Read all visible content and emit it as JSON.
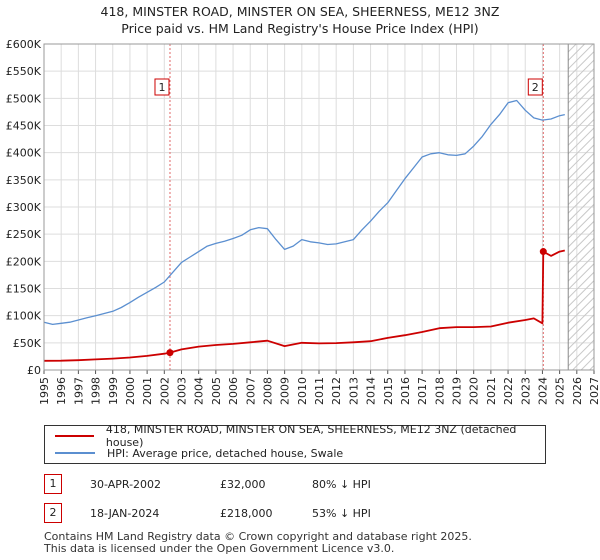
{
  "header": {
    "title": "418, MINSTER ROAD, MINSTER ON SEA, SHEERNESS, ME12 3NZ",
    "subtitle": "Price paid vs. HM Land Registry's House Price Index (HPI)"
  },
  "chart_data": {
    "type": "line",
    "title": "418, MINSTER ROAD, MINSTER ON SEA, SHEERNESS, ME12 3NZ",
    "subtitle": "Price paid vs. HM Land Registry's House Price Index (HPI)",
    "xlim": [
      1995,
      2027
    ],
    "ylim": [
      0,
      600000
    ],
    "x_ticks": [
      1995,
      1996,
      1997,
      1998,
      1999,
      2000,
      2001,
      2002,
      2003,
      2004,
      2005,
      2006,
      2007,
      2008,
      2009,
      2010,
      2011,
      2012,
      2013,
      2014,
      2015,
      2016,
      2017,
      2018,
      2019,
      2020,
      2021,
      2022,
      2023,
      2024,
      2025,
      2026,
      2027
    ],
    "y_ticks": [
      0,
      50000,
      100000,
      150000,
      200000,
      250000,
      300000,
      350000,
      400000,
      450000,
      500000,
      550000,
      600000
    ],
    "y_tick_labels": [
      "£0",
      "£50K",
      "£100K",
      "£150K",
      "£200K",
      "£250K",
      "£300K",
      "£350K",
      "£400K",
      "£450K",
      "£500K",
      "£550K",
      "£600K"
    ],
    "grid": true,
    "hatched_region": [
      2025.5,
      2027
    ],
    "series": [
      {
        "name": "HPI: Average price, detached house, Swale",
        "color": "#5b8fd0",
        "x": [
          1995.0,
          1995.5,
          1996.0,
          1996.5,
          1997.0,
          1997.5,
          1998.0,
          1998.5,
          1999.0,
          1999.5,
          2000.0,
          2000.5,
          2001.0,
          2001.5,
          2002.0,
          2002.5,
          2003.0,
          2003.5,
          2004.0,
          2004.5,
          2005.0,
          2005.5,
          2006.0,
          2006.5,
          2007.0,
          2007.5,
          2008.0,
          2008.5,
          2009.0,
          2009.5,
          2010.0,
          2010.5,
          2011.0,
          2011.5,
          2012.0,
          2012.5,
          2013.0,
          2013.5,
          2014.0,
          2014.5,
          2015.0,
          2015.5,
          2016.0,
          2016.5,
          2017.0,
          2017.5,
          2018.0,
          2018.5,
          2019.0,
          2019.5,
          2020.0,
          2020.5,
          2021.0,
          2021.5,
          2022.0,
          2022.5,
          2023.0,
          2023.5,
          2024.0,
          2024.5,
          2025.0,
          2025.3
        ],
        "y": [
          88000,
          84000,
          86000,
          88000,
          92000,
          96000,
          100000,
          104000,
          108000,
          115000,
          124000,
          134000,
          143000,
          152000,
          162000,
          180000,
          198000,
          208000,
          218000,
          228000,
          233000,
          237000,
          242000,
          248000,
          258000,
          262000,
          260000,
          240000,
          222000,
          228000,
          240000,
          236000,
          234000,
          231000,
          232000,
          236000,
          240000,
          258000,
          274000,
          292000,
          308000,
          330000,
          352000,
          372000,
          392000,
          398000,
          400000,
          396000,
          395000,
          398000,
          412000,
          430000,
          452000,
          470000,
          492000,
          496000,
          478000,
          464000,
          460000,
          462000,
          468000,
          470000
        ]
      },
      {
        "name": "418, MINSTER ROAD, MINSTER ON SEA, SHEERNESS, ME12 3NZ (detached house)",
        "color": "#cc0000",
        "x": [
          1995.0,
          1996.0,
          1997.0,
          1998.0,
          1999.0,
          2000.0,
          2001.0,
          2002.0,
          2002.33,
          2003.0,
          2004.0,
          2005.0,
          2006.0,
          2007.0,
          2008.0,
          2009.0,
          2010.0,
          2011.0,
          2012.0,
          2013.0,
          2014.0,
          2015.0,
          2016.0,
          2017.0,
          2018.0,
          2019.0,
          2020.0,
          2021.0,
          2022.0,
          2023.0,
          2023.5,
          2024.0,
          2024.05,
          2024.5,
          2025.0,
          2025.3
        ],
        "y": [
          17000,
          17200,
          18000,
          19500,
          21000,
          23000,
          26000,
          30000,
          32000,
          38000,
          43000,
          46000,
          48000,
          51000,
          54000,
          44000,
          50000,
          49000,
          49500,
          51000,
          53000,
          59000,
          64000,
          70000,
          77000,
          79000,
          79000,
          80000,
          87000,
          92000,
          95000,
          86000,
          218000,
          210000,
          218000,
          220000
        ]
      }
    ],
    "transactions": [
      {
        "id": "1",
        "date": "30-APR-2002",
        "x": 2002.33,
        "price": 32000,
        "price_label": "£32,000",
        "hpi_note": "80% ↓ HPI"
      },
      {
        "id": "2",
        "date": "18-JAN-2024",
        "x": 2024.05,
        "price": 218000,
        "price_label": "£218,000",
        "hpi_note": "53% ↓ HPI"
      }
    ]
  },
  "legend": {
    "property_label": "418, MINSTER ROAD, MINSTER ON SEA, SHEERNESS, ME12 3NZ (detached house)",
    "hpi_label": "HPI: Average price, detached house, Swale",
    "property_color": "#cc0000",
    "hpi_color": "#5b8fd0"
  },
  "transactions_table": [
    {
      "id": "1",
      "date": "30-APR-2002",
      "price": "£32,000",
      "hpi": "80% ↓ HPI"
    },
    {
      "id": "2",
      "date": "18-JAN-2024",
      "price": "£218,000",
      "hpi": "53% ↓ HPI"
    }
  ],
  "footer": {
    "line1": "Contains HM Land Registry data © Crown copyright and database right 2025.",
    "line2": "This data is licensed under the Open Government Licence v3.0."
  }
}
